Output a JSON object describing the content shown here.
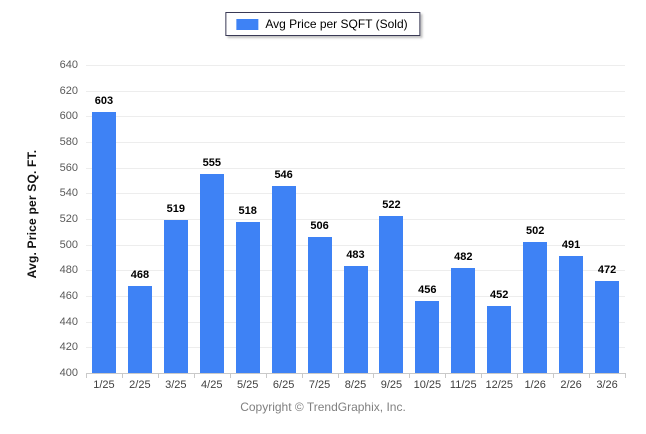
{
  "legend": {
    "label": "Avg Price per SQFT (Sold)"
  },
  "footer": {
    "copyright": "Copyright © TrendGraphix, Inc."
  },
  "colors": {
    "bar": "#3e82f5",
    "grid": "#ededed",
    "axis": "#c9c9c9",
    "value_label": "#000000",
    "tick_label": "#595959",
    "footer_text": "#808080"
  },
  "chart_data": {
    "type": "bar",
    "title": "",
    "series_name": "Avg Price per SQFT (Sold)",
    "categories": [
      "1/25",
      "2/25",
      "3/25",
      "4/25",
      "5/25",
      "6/25",
      "7/25",
      "8/25",
      "9/25",
      "10/25",
      "11/25",
      "12/25",
      "1/26",
      "2/26",
      "3/26"
    ],
    "values": [
      603,
      468,
      519,
      555,
      518,
      546,
      506,
      483,
      522,
      456,
      482,
      452,
      502,
      491,
      472
    ],
    "xlabel": "",
    "ylabel": "Avg. Price per SQ. FT.",
    "ylim": [
      400,
      640
    ],
    "ytick_step": 20,
    "grid": true,
    "legend_position": "top-center",
    "bar_color": "#3e82f5"
  }
}
